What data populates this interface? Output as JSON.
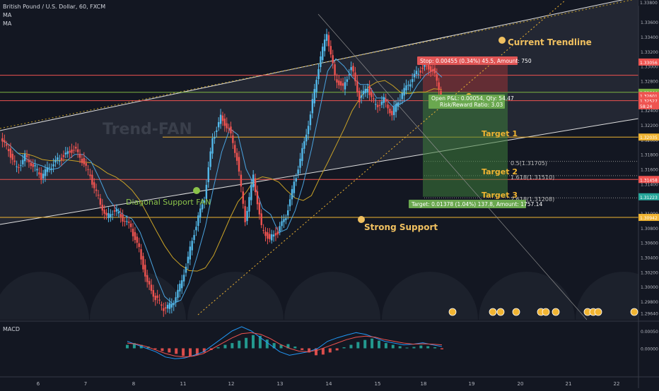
{
  "header": {
    "symbol_line": "British Pound / U.S. Dollar, 60, FXCM",
    "ind1": "MA",
    "ind2": "MA"
  },
  "watermark": "Trend-FAN",
  "colors": {
    "bg": "#131722",
    "up": "#53b9ea",
    "down": "#ef5350",
    "target": "#f0b432",
    "support": "#f0c060",
    "ma_slow": "#c9a227",
    "ma_fast": "#4aa3df",
    "fan_fill": "#2a2e39",
    "label_text": "#d9d9d9"
  },
  "annotations": {
    "current_trendline": "Current Trendline",
    "diagonal_support": "Diagonal Support FAN",
    "strong_support": "Strong Support",
    "target1": "Target 1",
    "target2": "Target 2",
    "target3": "Target 3",
    "fib_05": "0.5(1.31705)",
    "fib_1618": "1.618(1.31510)",
    "fib_2618": "2.618(1.31208)",
    "stop_box": "Stop: 0.00455 (0.34%) 45.5, Amount: 750",
    "open_pl": "Open P&L: 0.00054, Qty: 54.47",
    "rr": "Risk/Reward Ratio: 3.03",
    "target_box": "Target: 0.01378 (1.04%) 137.8, Amount: 1757.14",
    "macd_label": "MACD"
  },
  "price_axis": {
    "ticks": [
      "1.33600",
      "1.33400",
      "1.33200",
      "1.33000",
      "1.32800",
      "1.32400",
      "1.32200",
      "1.32000",
      "1.31800",
      "1.31600",
      "1.31400",
      "1.31000",
      "1.30800",
      "1.30600",
      "1.30400",
      "1.30200",
      "1.30000",
      "1.29800",
      "1.29640"
    ],
    "tags": [
      {
        "text": "1.33056",
        "color": "#ef5350"
      },
      {
        "text": "1.32644",
        "color": "#7cb342"
      },
      {
        "text": "1.32601",
        "color": "#ef5350"
      },
      {
        "text": "1.32527",
        "color": "#ef5350"
      },
      {
        "text": "58:24",
        "color": "#ef5350"
      },
      {
        "text": "1.32035",
        "color": "#f0b432"
      },
      {
        "text": "1.31458",
        "color": "#ef5350"
      },
      {
        "text": "1.31223",
        "color": "#26a69a"
      },
      {
        "text": "1.30942",
        "color": "#f0b432"
      },
      {
        "text": "1.33800",
        "color": "#131722"
      }
    ]
  },
  "macd_axis": {
    "ticks": [
      "0.00050",
      "0.00000"
    ]
  },
  "time_axis": {
    "labels": [
      "6",
      "7",
      "8",
      "11",
      "12",
      "13",
      "14",
      "15",
      "18",
      "19",
      "20",
      "21",
      "22"
    ]
  },
  "chart_data": {
    "type": "candlestick",
    "title": "British Pound / U.S. Dollar, 60, FXCM",
    "ylim": [
      1.2955,
      1.339
    ],
    "x_days": [
      "6",
      "7",
      "8",
      "11",
      "12",
      "13",
      "14",
      "15",
      "18",
      "19",
      "20",
      "21",
      "22"
    ],
    "price_path": [
      1.32,
      1.3185,
      1.316,
      1.3178,
      1.3165,
      1.315,
      1.3162,
      1.3172,
      1.318,
      1.3188,
      1.3172,
      1.315,
      1.312,
      1.3095,
      1.3105,
      1.3092,
      1.308,
      1.305,
      1.3005,
      1.2985,
      1.297,
      1.2975,
      1.3,
      1.304,
      1.3085,
      1.312,
      1.32,
      1.323,
      1.3215,
      1.3175,
      1.309,
      1.315,
      1.308,
      1.3065,
      1.3075,
      1.3095,
      1.314,
      1.3185,
      1.3235,
      1.33,
      1.3345,
      1.3285,
      1.327,
      1.33,
      1.3255,
      1.327,
      1.3245,
      1.3255,
      1.3235,
      1.3258,
      1.3275,
      1.329,
      1.33,
      1.3295,
      1.326
    ],
    "levels": {
      "current_price": 1.32601,
      "stop": 1.33056,
      "entry": 1.32644,
      "target1": 1.32035,
      "target2": 1.31458,
      "target3": 1.31223,
      "strong_support": 1.30942,
      "fib_0_5": 1.31705,
      "fib_1_618": 1.3151,
      "fib_2_618": 1.31208
    },
    "macd_ylim": [
      -0.0007,
      0.0007
    ],
    "macd_hist": [
      0.0001,
      0.00015,
      0.0001,
      5e-05,
      -3e-05,
      -8e-05,
      -0.00012,
      -0.00016,
      -0.00022,
      -0.00024,
      -0.0002,
      -0.00012,
      -5e-05,
      3e-05,
      0.0001,
      0.00015,
      0.00022,
      0.0003,
      0.00038,
      0.00036,
      0.00025,
      0.00015,
      0.0001,
      0.00012,
      5e-05,
      -5e-05,
      -0.00012,
      -0.0002,
      -0.00018,
      -0.00012,
      -6e-05,
      3e-05,
      0.0001,
      0.00018,
      0.00024,
      0.00028,
      0.00022,
      0.00015,
      0.0001,
      6e-05,
      2e-05,
      4e-05,
      8e-05,
      6e-05,
      3e-05,
      -3e-05
    ],
    "macd_line": [
      0.0002,
      0.0001,
      0.0,
      -0.0001,
      -0.00025,
      -0.0003,
      -0.00028,
      -0.0002,
      -0.0001,
      0.0001,
      0.0003,
      0.0005,
      0.00062,
      0.0005,
      0.0003,
      0.0001,
      -0.0001,
      -0.0002,
      -0.00015,
      -0.0001,
      0.0,
      0.0002,
      0.0003,
      0.00038,
      0.00045,
      0.0004,
      0.0003,
      0.0002,
      0.00015,
      0.0001,
      0.00012,
      0.00016,
      0.0001,
      5e-05
    ],
    "signal_line": [
      0.00015,
      0.00012,
      5e-05,
      -5e-05,
      -0.00015,
      -0.00022,
      -0.00025,
      -0.00022,
      -0.00015,
      0.0,
      0.00015,
      0.0003,
      0.00042,
      0.00045,
      0.0004,
      0.00028,
      0.00012,
      0.0,
      -8e-05,
      -0.0001,
      -5e-05,
      5e-05,
      0.00015,
      0.00025,
      0.00032,
      0.00035,
      0.00032,
      0.00025,
      0.0002,
      0.00015,
      0.00012,
      0.00013,
      0.00012,
      0.0001
    ]
  }
}
